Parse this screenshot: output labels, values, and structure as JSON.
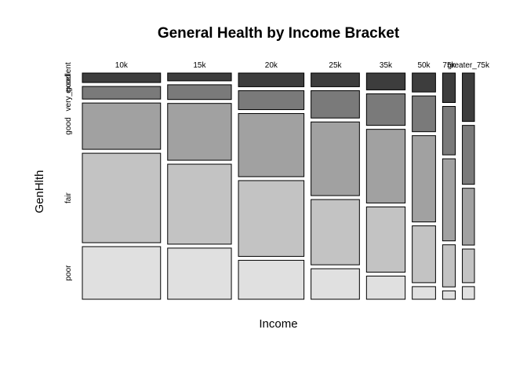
{
  "chart_data": {
    "type": "mosaic",
    "title": "General Health by Income Bracket",
    "xlabel": "Income",
    "ylabel": "GenHlth",
    "categories": [
      "10k",
      "15k",
      "20k",
      "25k",
      "35k",
      "50k",
      "75k",
      "greater_75k"
    ],
    "levels": [
      "excellent",
      "very_good",
      "good",
      "fair",
      "poor"
    ],
    "level_colors": {
      "excellent": "#3d3d3d",
      "very_good": "#7a7a7a",
      "good": "#a1a1a1",
      "fair": "#c3c3c3",
      "poor": "#e0e0e0"
    },
    "column_share": [
      0.265,
      0.216,
      0.222,
      0.164,
      0.131,
      0.079,
      0.043,
      0.041
    ],
    "series": [
      {
        "name": "excellent",
        "values": [
          0.045,
          0.037,
          0.065,
          0.065,
          0.08,
          0.09,
          0.14,
          0.23
        ]
      },
      {
        "name": "very_good",
        "values": [
          0.06,
          0.07,
          0.09,
          0.13,
          0.15,
          0.17,
          0.23,
          0.28
        ]
      },
      {
        "name": "good",
        "values": [
          0.22,
          0.27,
          0.3,
          0.35,
          0.35,
          0.41,
          0.39,
          0.27
        ]
      },
      {
        "name": "fair",
        "values": [
          0.425,
          0.38,
          0.36,
          0.31,
          0.31,
          0.27,
          0.2,
          0.16
        ]
      },
      {
        "name": "poor",
        "values": [
          0.25,
          0.243,
          0.185,
          0.145,
          0.11,
          0.06,
          0.04,
          0.06
        ]
      }
    ],
    "row_labels": [
      "excellent",
      "very_good",
      "good",
      "fair",
      "poor"
    ]
  }
}
